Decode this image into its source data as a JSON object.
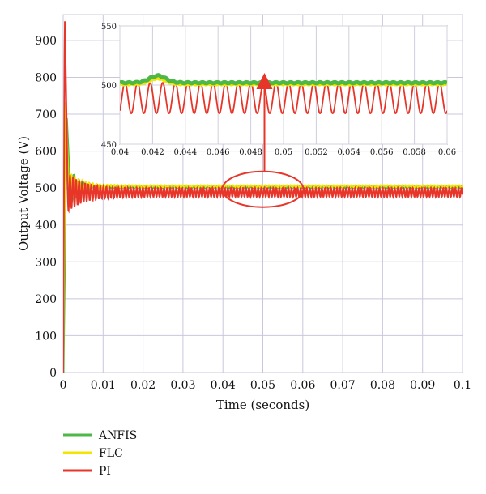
{
  "chart_data": {
    "type": "line",
    "xlabel": "Time (seconds)",
    "ylabel": "Output Voltage (V)",
    "xlim": [
      0,
      0.1
    ],
    "ylim": [
      0,
      970
    ],
    "xticks": [
      0,
      0.01,
      0.02,
      0.03,
      0.04,
      0.05,
      0.06,
      0.07,
      0.08,
      0.09,
      0.1
    ],
    "xtick_labels": [
      "0",
      "0.01",
      "0.02",
      "0.03",
      "0.04",
      "0.05",
      "0.06",
      "0.07",
      "0.08",
      "0.09",
      "0.1"
    ],
    "yticks": [
      0,
      100,
      200,
      300,
      400,
      500,
      600,
      700,
      800,
      900
    ],
    "ytick_labels": [
      "0",
      "100",
      "200",
      "300",
      "400",
      "500",
      "600",
      "700",
      "800",
      "900"
    ],
    "grid": true,
    "legend_position": "bottom-left",
    "series": [
      {
        "name": "ANFIS",
        "color": "#4db848",
        "steady_value": 503,
        "peak": 550,
        "ripple": 2
      },
      {
        "name": "FLC",
        "color": "#f2e600",
        "steady_value": 505,
        "peak": 745,
        "ripple": 3
      },
      {
        "name": "PI",
        "color": "#e8352a",
        "steady_value": 488,
        "peak": 970,
        "ripple": 12
      }
    ],
    "inset": {
      "xlim": [
        0.04,
        0.06
      ],
      "ylim": [
        450,
        550
      ],
      "xticks": [
        0.04,
        0.042,
        0.044,
        0.046,
        0.048,
        0.05,
        0.052,
        0.054,
        0.056,
        0.058,
        0.06
      ],
      "xtick_labels": [
        "0.04",
        "0.042",
        "0.044",
        "0.046",
        "0.048",
        "0.05",
        "0.052",
        "0.054",
        "0.056",
        "0.058",
        "0.06"
      ],
      "yticks": [
        450,
        500,
        550
      ],
      "ytick_labels": [
        "450",
        "500",
        "550"
      ],
      "pi_cycles": 26,
      "pi_min": 476,
      "pi_max": 502,
      "anfis_value": 502,
      "flc_value": 501
    },
    "annotation": {
      "type": "ellipse-with-arrow",
      "x_center": 0.05,
      "y_center": 490,
      "color": "#e8352a"
    }
  }
}
